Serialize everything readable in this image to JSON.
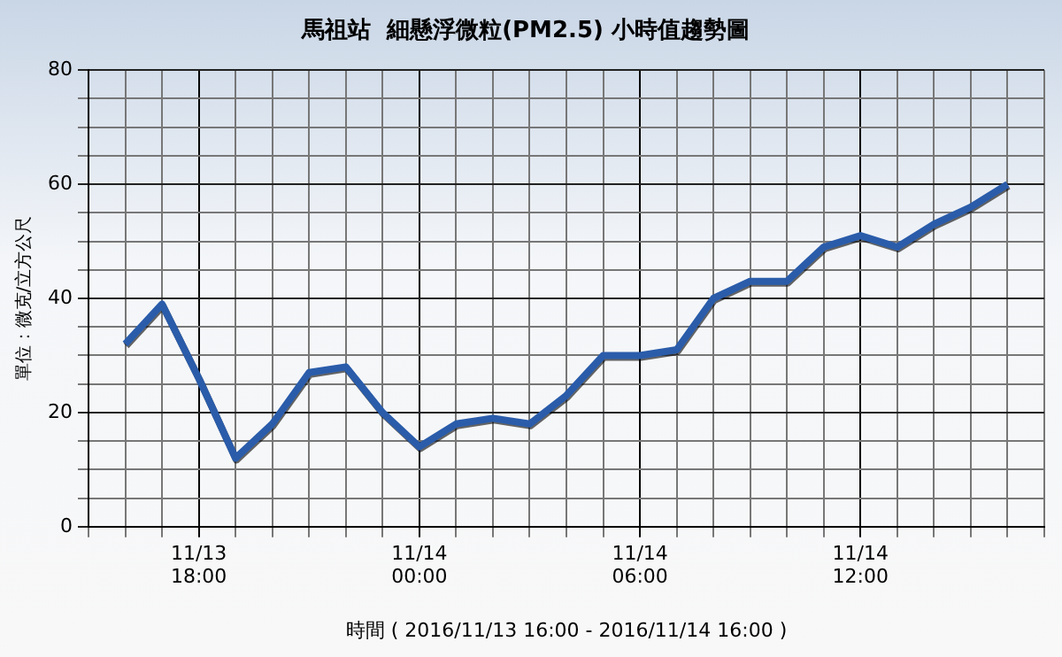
{
  "chart_data": {
    "type": "line",
    "title": "馬祖站  細懸浮微粒(PM2.5) 小時值趨勢圖",
    "xlabel": "時間 ( 2016/11/13 16:00 - 2016/11/14 16:00 )",
    "ylabel": "單位：微克/立方公尺",
    "categories": [
      null,
      null,
      "11/13\n18:00",
      null,
      null,
      null,
      null,
      null,
      "11/14\n00:00",
      null,
      null,
      null,
      null,
      null,
      "11/14\n06:00",
      null,
      null,
      null,
      null,
      null,
      "11/14\n12:00",
      null,
      null,
      null,
      null
    ],
    "series": [
      {
        "color": "#2a5caa",
        "values": [
          32,
          39,
          26,
          12,
          18,
          27,
          28,
          20,
          14,
          18,
          19,
          18,
          23,
          30,
          30,
          31,
          40,
          43,
          43,
          49,
          51,
          49,
          53,
          56,
          60
        ]
      }
    ],
    "ylim": [
      0,
      80
    ],
    "yticks": [
      0,
      {
        "value": 5,
        "label": null
      },
      {
        "value": 10,
        "label": null
      },
      {
        "value": 15,
        "label": null
      },
      20,
      {
        "value": 25,
        "label": null
      },
      {
        "value": 30,
        "label": null
      },
      {
        "value": 35,
        "label": null
      },
      40,
      {
        "value": 45,
        "label": null
      },
      {
        "value": 50,
        "label": null
      },
      {
        "value": 55,
        "label": null
      },
      60,
      {
        "value": 65,
        "label": null
      },
      {
        "value": 70,
        "label": null
      },
      {
        "value": 75,
        "label": null
      },
      80
    ],
    "grid": true,
    "legend": false,
    "marker": "none",
    "line_style": "solid"
  }
}
